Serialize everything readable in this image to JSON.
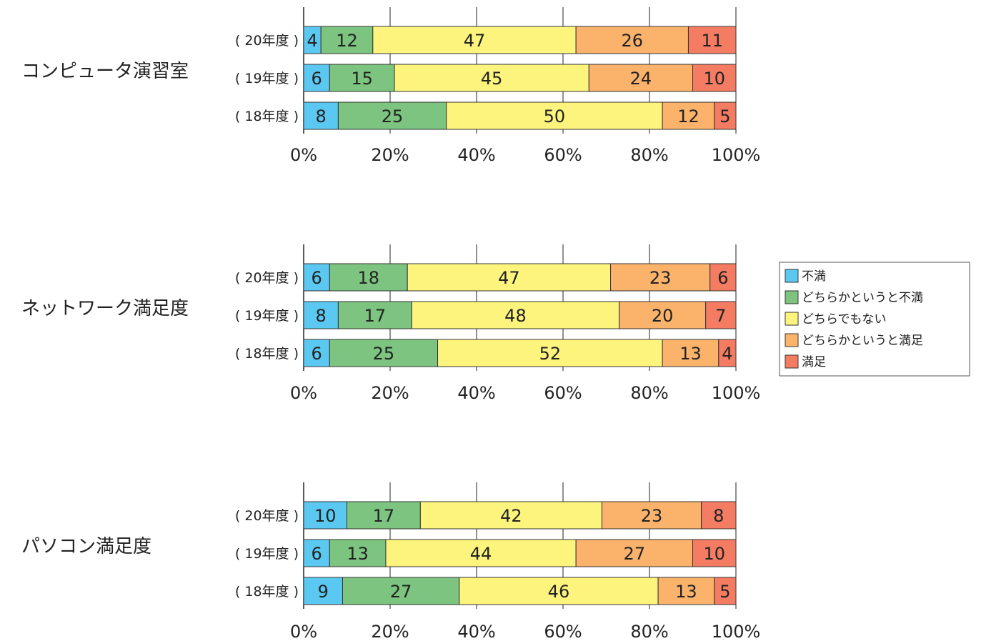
{
  "chart_data": {
    "type": "bar",
    "stacked": true,
    "orientation": "horizontal",
    "normalized": true,
    "x_ticks": [
      "0%",
      "20%",
      "40%",
      "60%",
      "80%",
      "100%"
    ],
    "xlim": [
      0,
      100
    ],
    "legend_position": "right",
    "legend": [
      {
        "name": "不満",
        "color": "#5bc8f2"
      },
      {
        "name": "どちらかというと不満",
        "color": "#7cc47f"
      },
      {
        "name": "どちらでもない",
        "color": "#fdf47e"
      },
      {
        "name": "どちらかというと満足",
        "color": "#fbb36b"
      },
      {
        "name": "満足",
        "color": "#f47c62"
      }
    ],
    "groups": [
      {
        "title": "コンピュータ演習室",
        "rows": [
          {
            "label": "( 20年度 )",
            "values": [
              4,
              12,
              47,
              26,
              11
            ]
          },
          {
            "label": "( 19年度 )",
            "values": [
              6,
              15,
              45,
              24,
              10
            ]
          },
          {
            "label": "( 18年度 )",
            "values": [
              8,
              25,
              50,
              12,
              5
            ]
          }
        ]
      },
      {
        "title": "ネットワーク満足度",
        "rows": [
          {
            "label": "( 20年度 )",
            "values": [
              6,
              18,
              47,
              23,
              6
            ]
          },
          {
            "label": "( 19年度 )",
            "values": [
              8,
              17,
              48,
              20,
              7
            ]
          },
          {
            "label": "( 18年度 )",
            "values": [
              6,
              25,
              52,
              13,
              4
            ]
          }
        ]
      },
      {
        "title": "パソコン満足度",
        "rows": [
          {
            "label": "( 20年度 )",
            "values": [
              10,
              17,
              42,
              23,
              8
            ]
          },
          {
            "label": "( 19年度 )",
            "values": [
              6,
              13,
              44,
              27,
              10
            ]
          },
          {
            "label": "( 18年度 )",
            "values": [
              9,
              27,
              46,
              13,
              5
            ]
          }
        ]
      }
    ]
  }
}
